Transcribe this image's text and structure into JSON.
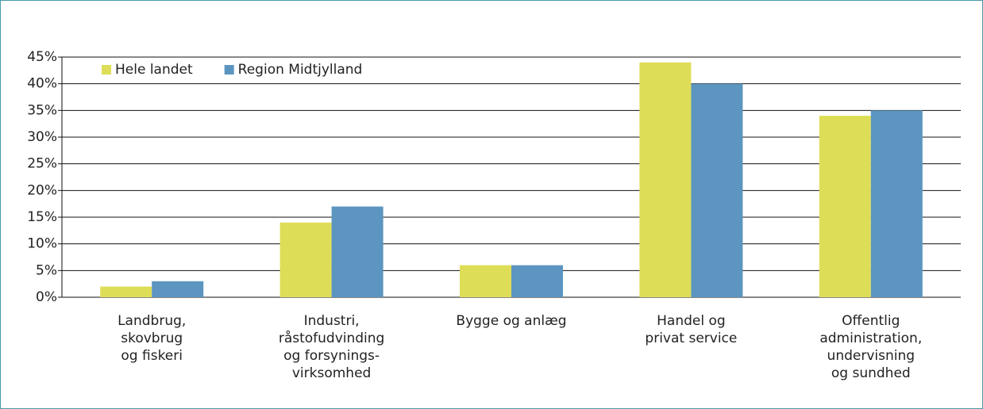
{
  "chart_data": {
    "type": "bar",
    "categories": [
      [
        "Landbrug,",
        "skovbrug",
        "og fiskeri"
      ],
      [
        "Industri,",
        "råstofudvinding",
        "og forsynings-",
        "virksomhed"
      ],
      [
        "Bygge og anlæg"
      ],
      [
        "Handel og",
        "privat service"
      ],
      [
        "Offentlig",
        "administration,",
        "undervisning",
        "og sundhed"
      ]
    ],
    "series": [
      {
        "name": "Hele landet",
        "color": "#dedd58",
        "values": [
          2,
          14,
          6,
          44,
          34
        ]
      },
      {
        "name": "Region Midtjylland",
        "color": "#5b95c0",
        "values": [
          3,
          17,
          6,
          40,
          35
        ]
      }
    ],
    "ylim": [
      0,
      45
    ],
    "yticks": [
      {
        "value": 0,
        "label": "0%"
      },
      {
        "value": 5,
        "label": "5%"
      },
      {
        "value": 10,
        "label": "10%"
      },
      {
        "value": 15,
        "label": "15%"
      },
      {
        "value": 20,
        "label": "20%"
      },
      {
        "value": 25,
        "label": "25%"
      },
      {
        "value": 30,
        "label": "30%"
      },
      {
        "value": 35,
        "label": "35%"
      },
      {
        "value": 40,
        "label": "40%"
      },
      {
        "value": 45,
        "label": "45%"
      }
    ],
    "grid": true
  }
}
